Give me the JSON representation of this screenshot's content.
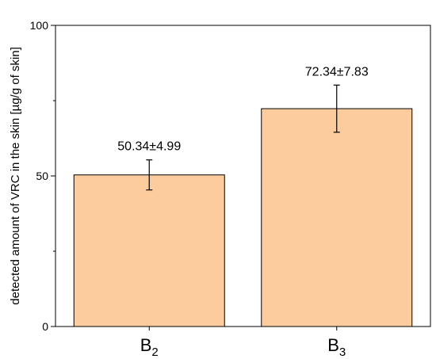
{
  "chart_data": {
    "type": "bar",
    "title": "",
    "xlabel": "",
    "ylabel": "detected amount of VRC in the skin [µg/g of skin]",
    "categories": [
      {
        "base": "B",
        "sub": "2"
      },
      {
        "base": "B",
        "sub": "3"
      }
    ],
    "values": [
      50.34,
      72.34
    ],
    "errors": [
      4.99,
      7.83
    ],
    "data_labels": [
      "50.34±4.99",
      "72.34±7.83"
    ],
    "ylim": [
      0,
      100
    ],
    "yticks": [
      0,
      50,
      100
    ],
    "yticks_minor": [
      25,
      75
    ],
    "bar_color": "#fdcc9c",
    "bar_edge_color": "#000000",
    "grid": false,
    "legend": "none"
  }
}
